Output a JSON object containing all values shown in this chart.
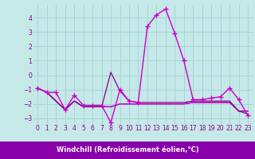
{
  "xlabel": "Windchill (Refroidissement éolien,°C)",
  "bg_color": "#c5e8e8",
  "grid_color": "#aad4d4",
  "line_color1": "#cc00cc",
  "line_color2": "#880088",
  "xlabel_bg": "#8800aa",
  "xlabel_fg": "#ffffff",
  "xlim": [
    -0.5,
    23.5
  ],
  "ylim": [
    -3.4,
    4.9
  ],
  "yticks": [
    -3,
    -2,
    -1,
    0,
    1,
    2,
    3,
    4
  ],
  "xticks": [
    0,
    1,
    2,
    3,
    4,
    5,
    6,
    7,
    8,
    9,
    10,
    11,
    12,
    13,
    14,
    15,
    16,
    17,
    18,
    19,
    20,
    21,
    22,
    23
  ],
  "series1": [
    -0.9,
    -1.2,
    -1.2,
    -2.4,
    -1.4,
    -2.1,
    -2.1,
    -2.1,
    -3.3,
    -1.0,
    -1.8,
    -1.9,
    3.4,
    4.2,
    4.6,
    2.9,
    1.0,
    -1.7,
    -1.7,
    -1.6,
    -1.5,
    -0.9,
    -1.7,
    -2.8
  ],
  "series2": [
    -0.9,
    -1.2,
    -1.8,
    -2.4,
    -1.8,
    -2.2,
    -2.2,
    -2.2,
    0.2,
    -1.1,
    -1.8,
    -1.9,
    -1.9,
    -1.9,
    -1.9,
    -1.9,
    -1.9,
    -1.8,
    -1.8,
    -1.8,
    -1.8,
    -1.8,
    -2.5,
    -2.5
  ],
  "series3": [
    -0.9,
    -1.2,
    -1.8,
    -2.4,
    -1.8,
    -2.2,
    -2.2,
    -2.2,
    -2.2,
    -2.0,
    -2.0,
    -2.0,
    -2.0,
    -2.0,
    -2.0,
    -2.0,
    -2.0,
    -1.9,
    -1.9,
    -1.9,
    -1.9,
    -1.9,
    -2.5,
    -2.5
  ],
  "series4": [
    -0.9,
    -1.2,
    -1.8,
    -2.4,
    -1.8,
    -2.2,
    -2.2,
    -2.2,
    -2.2,
    -2.0,
    -2.0,
    -2.0,
    -2.0,
    -2.0,
    -2.0,
    -2.0,
    -2.0,
    -1.9,
    -1.9,
    -1.9,
    -1.9,
    -1.9,
    -2.5,
    -2.7
  ]
}
